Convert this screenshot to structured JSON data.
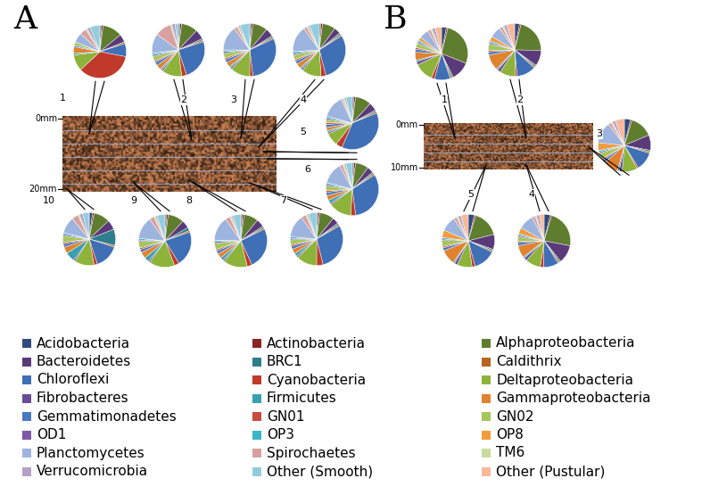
{
  "chart_data": {
    "type": "pie",
    "categories": [
      "Acidobacteria",
      "Actinobacteria",
      "Alphaproteobacteria",
      "Bacteroidetes",
      "BRC1",
      "Caldithrix",
      "Chloroflexi",
      "Cyanobacteria",
      "Deltaproteobacteria",
      "Fibrobacteres",
      "Firmicutes",
      "Gammaproteobacteria",
      "Gemmatimonadetes",
      "GN01",
      "GN02",
      "OD1",
      "OP3",
      "OP8",
      "Planctomycetes",
      "Spirochaetes",
      "TM6",
      "Verrucomicrobia",
      "Other (Smooth)",
      "Other (Pustular)"
    ],
    "colors": [
      "#2E4A7D",
      "#8B2323",
      "#5E7D2E",
      "#5B3A7A",
      "#2E7D8C",
      "#B5651D",
      "#3F6FB5",
      "#C0392B",
      "#8DB33A",
      "#6A4C93",
      "#3AA0B0",
      "#E0822E",
      "#4A78C0",
      "#C94A3E",
      "#A5C75A",
      "#7E57A6",
      "#3BB6C8",
      "#F29B3D",
      "#9DB4DF",
      "#D9A0A0",
      "#C8DCA0",
      "#B3A2C7",
      "#93CDDD",
      "#F9B89A"
    ],
    "panels": [
      {
        "label": "A",
        "depth_labels": [
          "0mm",
          "20mm"
        ],
        "pies": [
          {
            "title": "1",
            "values": [
              1,
              1,
              12,
              5,
              0,
              1,
              8,
              35,
              10,
              0,
              1,
              4,
              1,
              0,
              2,
              0,
              0,
              0,
              6,
              4,
              1,
              2,
              6,
              0
            ]
          },
          {
            "title": "2",
            "values": [
              1,
              1,
              10,
              6,
              1,
              1,
              25,
              3,
              12,
              1,
              1,
              3,
              2,
              1,
              3,
              1,
              1,
              0,
              12,
              10,
              1,
              2,
              2,
              0
            ]
          },
          {
            "title": "3",
            "values": [
              1,
              1,
              9,
              5,
              1,
              1,
              30,
              2,
              12,
              1,
              1,
              3,
              2,
              1,
              3,
              1,
              1,
              0,
              15,
              2,
              1,
              1,
              6,
              0
            ]
          },
          {
            "title": "4",
            "values": [
              1,
              1,
              8,
              4,
              1,
              1,
              30,
              3,
              12,
              1,
              1,
              3,
              2,
              1,
              3,
              1,
              1,
              0,
              16,
              2,
              1,
              1,
              6,
              0
            ]
          },
          {
            "title": "5",
            "values": [
              1,
              1,
              10,
              5,
              1,
              1,
              38,
              4,
              8,
              1,
              1,
              2,
              2,
              1,
              2,
              1,
              1,
              0,
              14,
              1,
              1,
              1,
              4,
              0
            ]
          },
          {
            "title": "6",
            "values": [
              1,
              1,
              8,
              4,
              1,
              1,
              32,
              3,
              14,
              1,
              2,
              3,
              2,
              1,
              3,
              1,
              1,
              0,
              13,
              2,
              1,
              1,
              4,
              0
            ]
          },
          {
            "title": "7",
            "values": [
              1,
              1,
              9,
              4,
              1,
              1,
              30,
              4,
              13,
              1,
              2,
              3,
              2,
              1,
              3,
              1,
              1,
              0,
              14,
              3,
              1,
              1,
              5,
              0
            ]
          },
          {
            "title": "8",
            "values": [
              1,
              1,
              9,
              5,
              1,
              1,
              26,
              3,
              15,
              1,
              2,
              3,
              2,
              1,
              4,
              1,
              1,
              0,
              15,
              3,
              1,
              1,
              5,
              0
            ]
          },
          {
            "title": "9",
            "values": [
              1,
              1,
              10,
              5,
              2,
              1,
              22,
              3,
              16,
              1,
              3,
              4,
              2,
              1,
              4,
              1,
              1,
              0,
              14,
              3,
              1,
              1,
              5,
              0
            ]
          },
          {
            "title": "10",
            "values": [
              2,
              1,
              10,
              6,
              10,
              1,
              15,
              2,
              12,
              1,
              6,
              4,
              2,
              1,
              4,
              1,
              1,
              0,
              10,
              4,
              1,
              2,
              4,
              0
            ]
          }
        ]
      },
      {
        "label": "B",
        "depth_labels": [
          "0mm",
          "10mm"
        ],
        "pies": [
          {
            "title": "1",
            "values": [
              3,
              1,
              28,
              12,
              1,
              1,
              10,
              2,
              12,
              2,
              1,
              5,
              2,
              1,
              3,
              1,
              1,
              2,
              6,
              2,
              1,
              2,
              0,
              4
            ]
          },
          {
            "title": "2",
            "values": [
              3,
              1,
              22,
              10,
              1,
              1,
              12,
              1,
              10,
              2,
              1,
              10,
              2,
              1,
              4,
              1,
              1,
              3,
              7,
              2,
              1,
              2,
              0,
              5
            ]
          },
          {
            "title": "3",
            "values": [
              4,
              1,
              15,
              10,
              1,
              1,
              12,
              1,
              10,
              2,
              1,
              10,
              2,
              1,
              4,
              1,
              1,
              5,
              14,
              2,
              1,
              2,
              0,
              6
            ]
          },
          {
            "title": "4",
            "values": [
              4,
              1,
              25,
              12,
              1,
              1,
              10,
              2,
              10,
              2,
              1,
              8,
              2,
              1,
              3,
              1,
              1,
              4,
              10,
              2,
              1,
              2,
              0,
              3
            ]
          },
          {
            "title": "5",
            "values": [
              4,
              1,
              18,
              10,
              1,
              1,
              15,
              2,
              10,
              2,
              1,
              10,
              2,
              1,
              4,
              1,
              1,
              5,
              10,
              2,
              1,
              2,
              0,
              5
            ]
          }
        ]
      }
    ]
  }
}
